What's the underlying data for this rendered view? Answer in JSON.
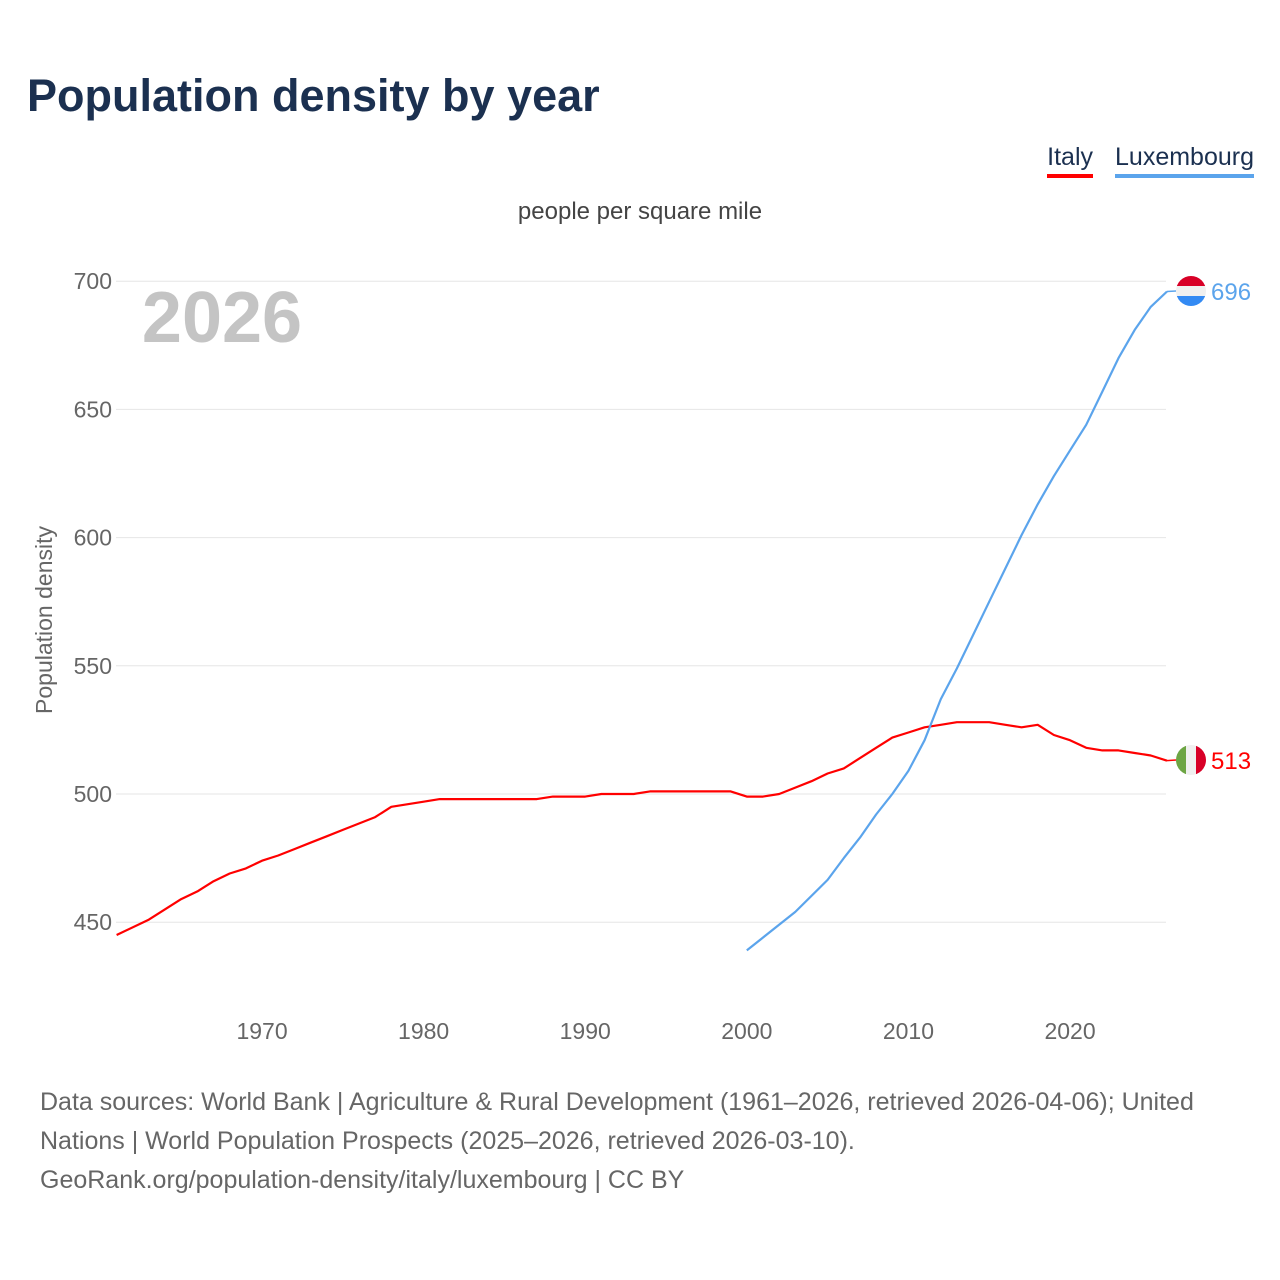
{
  "title": "Population density by year",
  "legend": [
    "Italy",
    "Luxembourg"
  ],
  "unit_label": "people per square mile",
  "year_watermark": "2026",
  "source_lines": [
    "Data sources: World Bank | Agriculture & Rural Development (1961–2026, retrieved 2026-04-06); United Nations | World Population Prospects (2025–2026, retrieved 2026-03-10).",
    "GeoRank.org/population-density/italy/luxembourg | CC BY"
  ],
  "chart_data": {
    "type": "line",
    "title": "Population density by year",
    "xlabel": "",
    "ylabel": "Population density",
    "xlim": [
      1961,
      2026
    ],
    "ylim": [
      430,
      700
    ],
    "xticks": [
      1970,
      1980,
      1990,
      2000,
      2010,
      2020
    ],
    "yticks": [
      450,
      500,
      550,
      600,
      650,
      700
    ],
    "grid": true,
    "legend_position": "top-right",
    "series": [
      {
        "name": "Italy",
        "color": "#ff0000",
        "end_label": "513",
        "x": [
          1961,
          1963,
          1965,
          1966,
          1967,
          1968,
          1969,
          1970,
          1971,
          1972,
          1973,
          1974,
          1975,
          1976,
          1977,
          1978,
          1980,
          1981,
          1987,
          1988,
          1990,
          1991,
          1993,
          1994,
          1999,
          2000,
          2001,
          2002,
          2003,
          2004,
          2005,
          2006,
          2007,
          2008,
          2009,
          2010,
          2011,
          2012,
          2013,
          2015,
          2016,
          2017,
          2018,
          2019,
          2020,
          2021,
          2022,
          2023,
          2024,
          2025,
          2026
        ],
        "y": [
          445,
          451,
          459,
          462,
          466,
          469,
          471,
          474,
          476,
          478.5,
          481,
          483.5,
          486,
          488.5,
          491,
          495,
          497,
          498,
          498,
          499,
          499,
          500,
          500,
          501,
          501,
          499,
          499,
          500,
          502.5,
          505,
          508,
          510,
          514,
          518,
          522,
          524,
          526,
          527,
          528,
          528,
          527,
          526,
          527,
          523,
          521,
          518,
          517,
          517,
          516,
          515,
          513
        ]
      },
      {
        "name": "Luxembourg",
        "color": "#5ba4ec",
        "end_label": "696",
        "x": [
          2000,
          2003,
          2005,
          2006,
          2007,
          2008,
          2009,
          2010,
          2011,
          2012,
          2013,
          2014,
          2015,
          2016,
          2017,
          2018,
          2019,
          2020,
          2021,
          2022,
          2023,
          2024,
          2025,
          2026
        ],
        "y": [
          439,
          454,
          466.5,
          475,
          483,
          492,
          500,
          509,
          521,
          537,
          549,
          562,
          575,
          588,
          601,
          613,
          624,
          634,
          644,
          657,
          670,
          681,
          690,
          696
        ]
      }
    ]
  }
}
